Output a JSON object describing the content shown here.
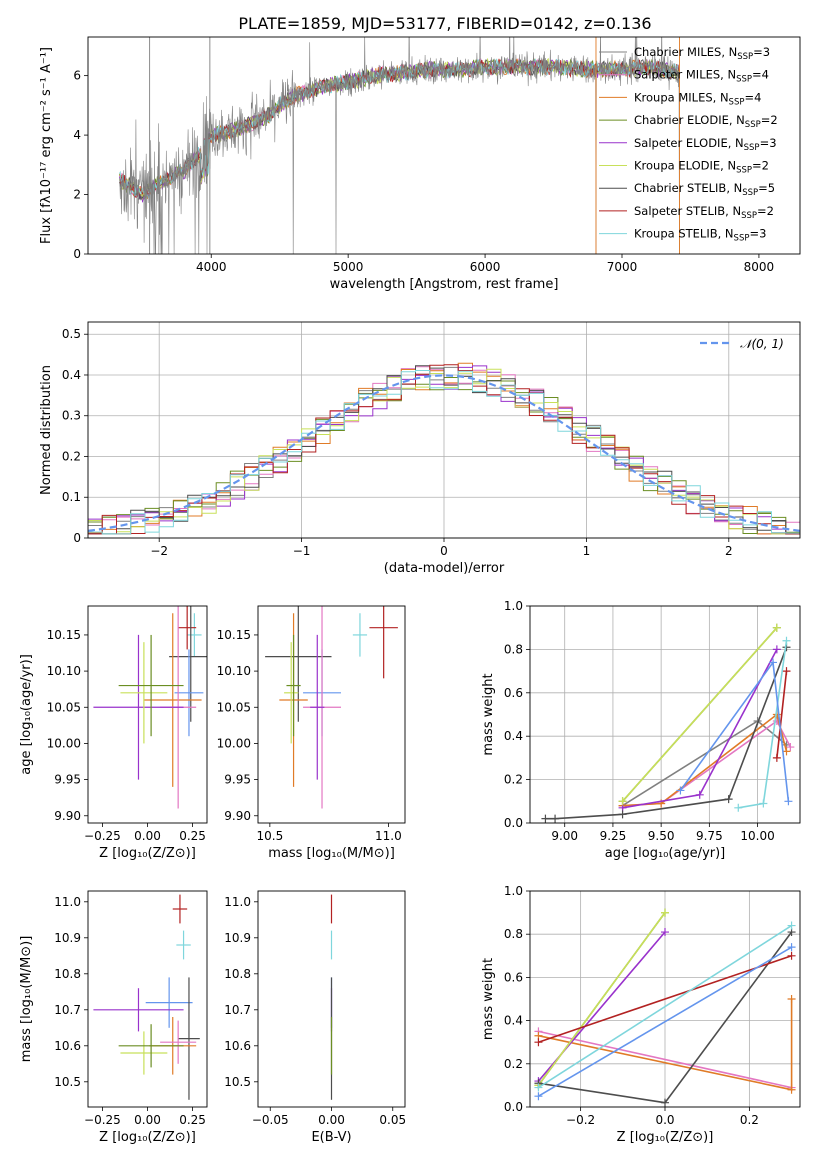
{
  "figure": {
    "title": "PLATE=1859, MJD=53177, FIBERID=0142, z=0.136"
  },
  "colors": {
    "chab_miles": "#808080",
    "salp_miles": "#e377c2",
    "krou_miles": "#e07b27",
    "chab_elodie": "#6b8e23",
    "salp_elodie": "#9932cc",
    "krou_elodie": "#c8e05a",
    "chab_stelib": "#4d4d4d",
    "salp_stelib": "#b22222",
    "krou_stelib": "#7fd6dc",
    "cornflower": "#6495ed",
    "orange": "#e07b27"
  },
  "chart_data": [
    {
      "id": "spectrum",
      "type": "line",
      "xlabel": "wavelength [Angstrom, rest frame]",
      "ylabel": "Flux [fλ10⁻¹⁷ erg cm⁻² s⁻¹ A⁻¹]",
      "xlim": [
        3100,
        8300
      ],
      "ylim": [
        0,
        7.3
      ],
      "xticks": [
        4000,
        5000,
        6000,
        7000,
        8000
      ],
      "yticks": [
        0,
        2,
        4,
        6
      ],
      "legend_position": "top-right",
      "legend": [
        {
          "name": "Chabrier MILES, N",
          "sub": "SSP",
          "tail": "=3",
          "color": "#808080"
        },
        {
          "name": "Salpeter MILES, N",
          "sub": "SSP",
          "tail": "=4",
          "color": "#e377c2"
        },
        {
          "name": "Kroupa MILES, N",
          "sub": "SSP",
          "tail": "=4",
          "color": "#e07b27"
        },
        {
          "name": "Chabrier ELODIE, N",
          "sub": "SSP",
          "tail": "=2",
          "color": "#6b8e23"
        },
        {
          "name": "Salpeter ELODIE, N",
          "sub": "SSP",
          "tail": "=3",
          "color": "#9932cc"
        },
        {
          "name": "Kroupa ELODIE, N",
          "sub": "SSP",
          "tail": "=2",
          "color": "#c8e05a"
        },
        {
          "name": "Chabrier STELIB, N",
          "sub": "SSP",
          "tail": "=5",
          "color": "#4d4d4d"
        },
        {
          "name": "Salpeter STELIB, N",
          "sub": "SSP",
          "tail": "=2",
          "color": "#b22222"
        },
        {
          "name": "Kroupa STELIB, N",
          "sub": "SSP",
          "tail": "=3",
          "color": "#7fd6dc"
        }
      ],
      "continuum": {
        "x": [
          3330,
          3400,
          3500,
          3600,
          3700,
          3800,
          3900,
          4000,
          4100,
          4200,
          4300,
          4400,
          4500,
          4600,
          4800,
          5000,
          5200,
          5400,
          5600,
          5800,
          6000,
          6200,
          6500,
          6800,
          7000,
          7200,
          7400
        ],
        "y": [
          2.5,
          2.3,
          2.0,
          2.3,
          2.6,
          2.8,
          3.3,
          4.0,
          4.1,
          4.2,
          4.4,
          4.6,
          5.0,
          5.3,
          5.6,
          5.8,
          6.0,
          6.1,
          6.2,
          6.2,
          6.3,
          6.3,
          6.3,
          6.2,
          6.2,
          6.3,
          6.1
        ]
      },
      "data_drops": [
        {
          "x": 4600,
          "y": 0
        },
        {
          "x": 4910,
          "y": 0
        },
        {
          "x": 6810,
          "y": 0
        },
        {
          "x": 7420,
          "y": 0
        }
      ]
    },
    {
      "id": "residuals",
      "type": "histogram",
      "xlabel": "(data-model)/error",
      "ylabel": "Normed distribution",
      "xlim": [
        -2.5,
        2.5
      ],
      "ylim": [
        0,
        0.53
      ],
      "xticks": [
        -2,
        -1,
        0,
        1,
        2
      ],
      "yticks": [
        0.0,
        0.1,
        0.2,
        0.3,
        0.4,
        0.5
      ],
      "grid": true,
      "legend_position": "top-right",
      "legend": [
        {
          "name": "𝒩(0, 1)",
          "color": "#6495ed",
          "style": "dashed"
        }
      ],
      "bin_width": 0.1
    },
    {
      "id": "age_vs_Z",
      "type": "errorbar",
      "xlabel": "Z [log₁₀(Z/Z⊙)]",
      "ylabel": "age  [log₁₀(age/yr)]",
      "xlim": [
        -0.33,
        0.33
      ],
      "ylim": [
        9.89,
        10.19
      ],
      "xticks": [
        -0.25,
        0.0,
        0.25
      ],
      "xticklabels": [
        "−0.25",
        "0.00",
        "0.25"
      ],
      "yticks": [
        9.9,
        9.95,
        10.0,
        10.05,
        10.1,
        10.15
      ],
      "yticklabels": [
        "9.90",
        "9.95",
        "10.00",
        "10.05",
        "10.10",
        "10.15"
      ],
      "points": [
        {
          "x": 0.26,
          "y": 10.15,
          "xerr": 0.04,
          "yerr": 0.03,
          "color": "#7fd6dc"
        },
        {
          "x": 0.22,
          "y": 10.16,
          "xerr": 0.05,
          "yerr": 0.03,
          "color": "#b22222"
        },
        {
          "x": 0.24,
          "y": 10.12,
          "xerr": 0.12,
          "yerr": 0.09,
          "color": "#4d4d4d"
        },
        {
          "x": 0.23,
          "y": 10.07,
          "xerr": 0.08,
          "yerr": 0.06,
          "color": "#6495ed"
        },
        {
          "x": 0.14,
          "y": 10.06,
          "xerr": 0.16,
          "yerr": 0.12,
          "color": "#e07b27"
        },
        {
          "x": 0.17,
          "y": 10.05,
          "xerr": 0.1,
          "yerr": 0.14,
          "color": "#e377c2"
        },
        {
          "x": -0.05,
          "y": 10.05,
          "xerr": 0.25,
          "yerr": 0.1,
          "color": "#9932cc"
        },
        {
          "x": -0.02,
          "y": 10.07,
          "xerr": 0.13,
          "yerr": 0.07,
          "color": "#c8e05a"
        },
        {
          "x": 0.02,
          "y": 10.08,
          "xerr": 0.18,
          "yerr": 0.07,
          "color": "#6b8e23"
        }
      ]
    },
    {
      "id": "age_vs_mass",
      "type": "errorbar",
      "xlabel": "mass [log₁₀(M/M⊙)]",
      "ylabel": "",
      "xlim": [
        10.45,
        11.07
      ],
      "ylim": [
        9.89,
        10.19
      ],
      "xticks": [
        10.5,
        11.0
      ],
      "xticklabels": [
        "10.5",
        "11.0"
      ],
      "yticks": [
        9.9,
        9.95,
        10.0,
        10.05,
        10.1,
        10.15
      ],
      "yticklabels": [
        "9.90",
        "9.95",
        "10.00",
        "10.05",
        "10.10",
        "10.15"
      ],
      "points": [
        {
          "x": 10.98,
          "y": 10.16,
          "xerr": 0.06,
          "yerr": 0.07,
          "color": "#b22222"
        },
        {
          "x": 10.88,
          "y": 10.15,
          "xerr": 0.03,
          "yerr": 0.03,
          "color": "#7fd6dc"
        },
        {
          "x": 10.62,
          "y": 10.12,
          "xerr": 0.14,
          "yerr": 0.09,
          "color": "#4d4d4d"
        },
        {
          "x": 10.72,
          "y": 10.07,
          "xerr": 0.08,
          "yerr": 0.06,
          "color": "#6495ed"
        },
        {
          "x": 10.6,
          "y": 10.06,
          "xerr": 0.06,
          "yerr": 0.12,
          "color": "#e07b27"
        },
        {
          "x": 10.72,
          "y": 10.05,
          "xerr": 0.08,
          "yerr": 0.14,
          "color": "#e377c2"
        },
        {
          "x": 10.7,
          "y": 10.05,
          "xerr": 0.03,
          "yerr": 0.1,
          "color": "#9932cc"
        },
        {
          "x": 10.59,
          "y": 10.07,
          "xerr": 0.03,
          "yerr": 0.07,
          "color": "#c8e05a"
        },
        {
          "x": 10.6,
          "y": 10.08,
          "xerr": 0.03,
          "yerr": 0.07,
          "color": "#6b8e23"
        }
      ]
    },
    {
      "id": "weight_vs_age",
      "type": "line",
      "xlabel": "age  [log₁₀(age/yr)]",
      "ylabel": "mass weight",
      "xlim": [
        8.82,
        10.22
      ],
      "ylim": [
        0,
        1
      ],
      "xticks": [
        9.0,
        9.25,
        9.5,
        9.75,
        10.0
      ],
      "xticklabels": [
        "9.00",
        "9.25",
        "9.50",
        "9.75",
        "10.00"
      ],
      "yticks": [
        0,
        0.2,
        0.4,
        0.6,
        0.8,
        1.0
      ],
      "yticklabels": [
        "0.0",
        "0.2",
        "0.4",
        "0.6",
        "0.8",
        "1.0"
      ],
      "grid": true,
      "series": [
        {
          "color": "#808080",
          "points": [
            [
              9.3,
              0.08
            ],
            [
              10.0,
              0.47
            ],
            [
              10.15,
              0.36
            ]
          ]
        },
        {
          "color": "#e377c2",
          "points": [
            [
              9.3,
              0.08
            ],
            [
              9.5,
              0.09
            ],
            [
              10.1,
              0.47
            ],
            [
              10.17,
              0.35
            ]
          ]
        },
        {
          "color": "#e07b27",
          "points": [
            [
              9.3,
              0.08
            ],
            [
              9.5,
              0.09
            ],
            [
              10.1,
              0.5
            ],
            [
              10.15,
              0.33
            ]
          ]
        },
        {
          "color": "#6b8e23",
          "points": [
            [
              9.3,
              0.1
            ],
            [
              10.1,
              0.9
            ]
          ]
        },
        {
          "color": "#9932cc",
          "points": [
            [
              9.3,
              0.07
            ],
            [
              9.7,
              0.13
            ],
            [
              10.1,
              0.8
            ]
          ]
        },
        {
          "color": "#c8e05a",
          "points": [
            [
              9.3,
              0.1
            ],
            [
              10.1,
              0.9
            ]
          ]
        },
        {
          "color": "#4d4d4d",
          "points": [
            [
              8.9,
              0.02
            ],
            [
              8.95,
              0.02
            ],
            [
              9.3,
              0.04
            ],
            [
              9.85,
              0.11
            ],
            [
              10.15,
              0.81
            ]
          ]
        },
        {
          "color": "#b22222",
          "points": [
            [
              10.1,
              0.3
            ],
            [
              10.15,
              0.7
            ]
          ]
        },
        {
          "color": "#7fd6dc",
          "points": [
            [
              9.9,
              0.07
            ],
            [
              10.03,
              0.09
            ],
            [
              10.15,
              0.84
            ]
          ]
        },
        {
          "color": "#6495ed",
          "points": [
            [
              9.6,
              0.15
            ],
            [
              10.08,
              0.74
            ],
            [
              10.16,
              0.1
            ]
          ]
        }
      ]
    },
    {
      "id": "mass_vs_Z",
      "type": "errorbar",
      "xlabel": "Z [log₁₀(Z/Z⊙)]",
      "ylabel": "mass [log₁₀(M/M⊙)]",
      "xlim": [
        -0.33,
        0.33
      ],
      "ylim": [
        10.43,
        11.03
      ],
      "xticks": [
        -0.25,
        0.0,
        0.25
      ],
      "xticklabels": [
        "−0.25",
        "0.00",
        "0.25"
      ],
      "yticks": [
        10.5,
        10.6,
        10.7,
        10.8,
        10.9,
        11.0
      ],
      "yticklabels": [
        "10.5",
        "10.6",
        "10.7",
        "10.8",
        "10.9",
        "11.0"
      ],
      "points": [
        {
          "x": 0.18,
          "y": 10.98,
          "xerr": 0.04,
          "yerr": 0.04,
          "color": "#b22222"
        },
        {
          "x": 0.2,
          "y": 10.88,
          "xerr": 0.04,
          "yerr": 0.04,
          "color": "#7fd6dc"
        },
        {
          "x": 0.12,
          "y": 10.72,
          "xerr": 0.13,
          "yerr": 0.07,
          "color": "#6495ed"
        },
        {
          "x": -0.05,
          "y": 10.7,
          "xerr": 0.25,
          "yerr": 0.06,
          "color": "#9932cc"
        },
        {
          "x": 0.23,
          "y": 10.62,
          "xerr": 0.06,
          "yerr": 0.17,
          "color": "#4d4d4d"
        },
        {
          "x": 0.14,
          "y": 10.6,
          "xerr": 0.13,
          "yerr": 0.08,
          "color": "#e07b27"
        },
        {
          "x": 0.17,
          "y": 10.61,
          "xerr": 0.1,
          "yerr": 0.06,
          "color": "#e377c2"
        },
        {
          "x": -0.02,
          "y": 10.58,
          "xerr": 0.13,
          "yerr": 0.06,
          "color": "#c8e05a"
        },
        {
          "x": 0.02,
          "y": 10.6,
          "xerr": 0.18,
          "yerr": 0.06,
          "color": "#6b8e23"
        }
      ]
    },
    {
      "id": "mass_vs_ebv",
      "type": "errorbar",
      "xlabel": "E(B-V)",
      "ylabel": "",
      "xlim": [
        -0.06,
        0.06
      ],
      "ylim": [
        10.43,
        11.03
      ],
      "xticks": [
        -0.05,
        0.0,
        0.05
      ],
      "xticklabels": [
        "−0.05",
        "0.00",
        "0.05"
      ],
      "yticks": [
        10.5,
        10.6,
        10.7,
        10.8,
        10.9,
        11.0
      ],
      "yticklabels": [
        "10.5",
        "10.6",
        "10.7",
        "10.8",
        "10.9",
        "11.0"
      ],
      "points": [
        {
          "x": 0,
          "y": 10.98,
          "xerr": 0,
          "yerr": 0.04,
          "color": "#b22222"
        },
        {
          "x": 0,
          "y": 10.88,
          "xerr": 0,
          "yerr": 0.04,
          "color": "#7fd6dc"
        },
        {
          "x": 0,
          "y": 10.72,
          "xerr": 0,
          "yerr": 0.07,
          "color": "#6495ed"
        },
        {
          "x": 0,
          "y": 10.7,
          "xerr": 0,
          "yerr": 0.06,
          "color": "#9932cc"
        },
        {
          "x": 0,
          "y": 10.62,
          "xerr": 0,
          "yerr": 0.17,
          "color": "#4d4d4d"
        },
        {
          "x": 0,
          "y": 10.6,
          "xerr": 0,
          "yerr": 0.08,
          "color": "#6b8e23"
        }
      ]
    },
    {
      "id": "weight_vs_Z",
      "type": "line",
      "xlabel": "Z [log₁₀(Z/Z⊙)]",
      "ylabel": "mass weight",
      "xlim": [
        -0.32,
        0.32
      ],
      "ylim": [
        0,
        1
      ],
      "xticks": [
        -0.2,
        0.0,
        0.2
      ],
      "xticklabels": [
        "−0.2",
        "0.0",
        "0.2"
      ],
      "yticks": [
        0,
        0.2,
        0.4,
        0.6,
        0.8,
        1.0
      ],
      "yticklabels": [
        "0.0",
        "0.2",
        "0.4",
        "0.6",
        "0.8",
        "1.0"
      ],
      "grid": true,
      "series": [
        {
          "color": "#e377c2",
          "points": [
            [
              -0.3,
              0.35
            ],
            [
              0.3,
              0.09
            ]
          ]
        },
        {
          "color": "#e07b27",
          "points": [
            [
              -0.3,
              0.33
            ],
            [
              0.3,
              0.08
            ],
            [
              0.3,
              0.5
            ]
          ]
        },
        {
          "color": "#6b8e23",
          "points": [
            [
              -0.3,
              0.1
            ],
            [
              0.0,
              0.9
            ]
          ]
        },
        {
          "color": "#9932cc",
          "points": [
            [
              -0.3,
              0.12
            ],
            [
              0.0,
              0.81
            ]
          ]
        },
        {
          "color": "#c8e05a",
          "points": [
            [
              -0.3,
              0.1
            ],
            [
              0.0,
              0.9
            ]
          ]
        },
        {
          "color": "#4d4d4d",
          "points": [
            [
              -0.3,
              0.11
            ],
            [
              0.0,
              0.02
            ],
            [
              0.3,
              0.81
            ]
          ]
        },
        {
          "color": "#b22222",
          "points": [
            [
              -0.3,
              0.3
            ],
            [
              0.3,
              0.7
            ]
          ]
        },
        {
          "color": "#7fd6dc",
          "points": [
            [
              -0.3,
              0.09
            ],
            [
              0.3,
              0.84
            ]
          ]
        },
        {
          "color": "#6495ed",
          "points": [
            [
              -0.3,
              0.05
            ],
            [
              0.3,
              0.74
            ]
          ]
        }
      ]
    }
  ]
}
